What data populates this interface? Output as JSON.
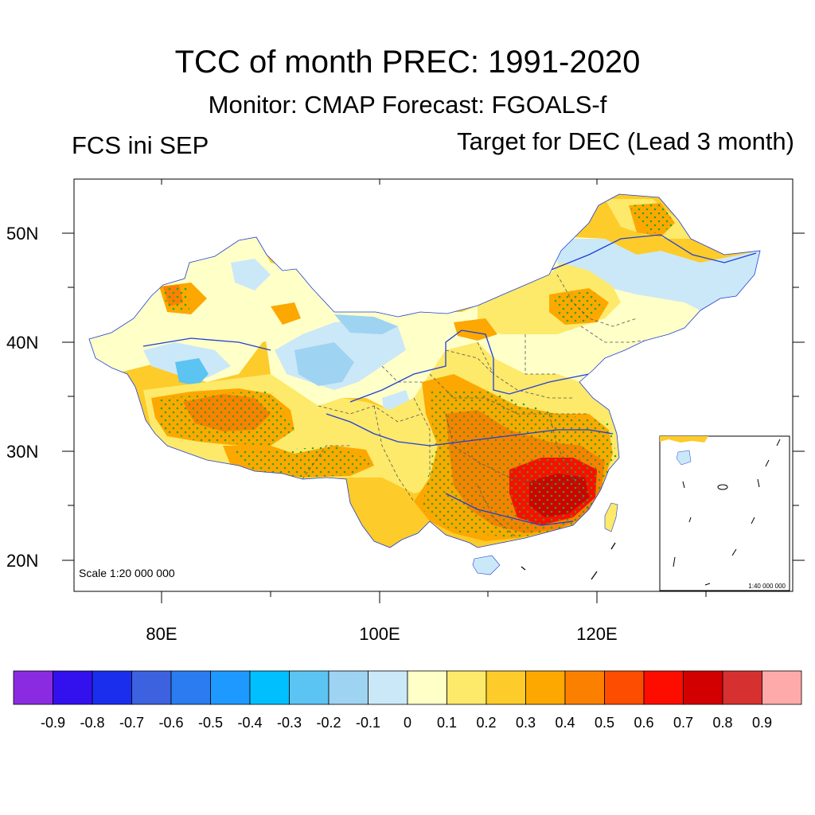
{
  "header": {
    "title": "TCC of month PREC: 1991-2020",
    "subtitle": "Monitor: CMAP   Forecast: FGOALS-f",
    "left_label": "FCS ini SEP",
    "right_label": "Target for DEC (Lead 3 month)"
  },
  "map": {
    "lat_labels": [
      "50N",
      "40N",
      "30N",
      "20N"
    ],
    "lon_labels": [
      "80E",
      "100E",
      "120E"
    ],
    "scale_main": "Scale 1:20 000 000",
    "scale_inset": "1:40 000 000",
    "colors": {
      "border": "#000000",
      "river": "#1f3fd6",
      "stipple": "#22aa22",
      "province_line": "#555555"
    }
  },
  "colorbar": {
    "colors": [
      "#8a2be2",
      "#3311ee",
      "#1a2eee",
      "#3c62e0",
      "#2a7cf0",
      "#1e99ff",
      "#00bfff",
      "#5bc4f2",
      "#9fd3f2",
      "#cbe8f8",
      "#ffffc8",
      "#fde96a",
      "#fdcb2a",
      "#fca800",
      "#fc8000",
      "#fd4d00",
      "#fd0d00",
      "#d20000",
      "#d63030",
      "#ffaaaa"
    ],
    "labels": [
      "-0.9",
      "-0.8",
      "-0.7",
      "-0.6",
      "-0.5",
      "-0.4",
      "-0.3",
      "-0.2",
      "-0.1",
      "0",
      "0.1",
      "0.2",
      "0.3",
      "0.4",
      "0.5",
      "0.6",
      "0.7",
      "0.8",
      "0.9"
    ]
  }
}
